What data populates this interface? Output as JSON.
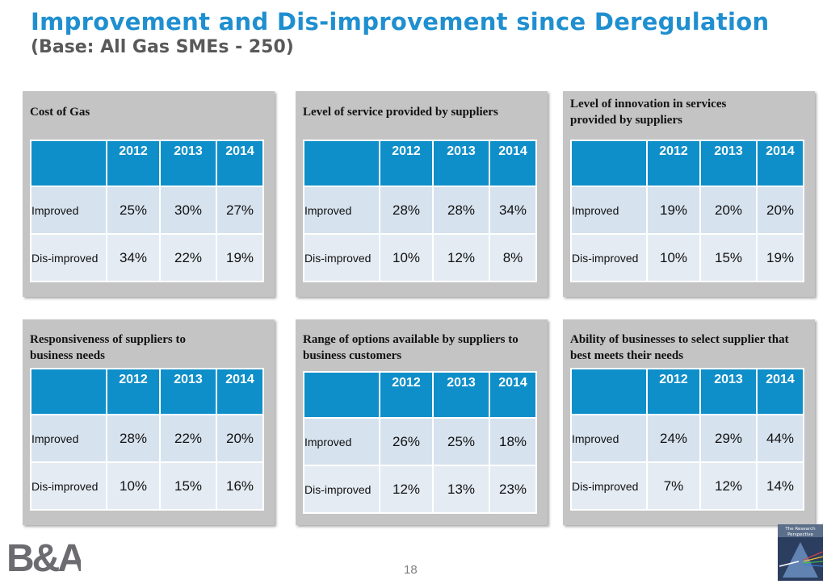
{
  "header": {
    "title": "Improvement and Dis-improvement since Deregulation",
    "subtitle": "(Base: All Gas SMEs - 250)"
  },
  "years": [
    "2012",
    "2013",
    "2014"
  ],
  "row_labels": [
    "Improved",
    "Dis-improved"
  ],
  "panels": [
    {
      "title": "Cost of Gas",
      "improved": [
        "25%",
        "30%",
        "27%"
      ],
      "disimproved": [
        "34%",
        "22%",
        "19%"
      ]
    },
    {
      "title": "Level of service provided by suppliers",
      "improved": [
        "28%",
        "28%",
        "34%"
      ],
      "disimproved": [
        "10%",
        "12%",
        "8%"
      ]
    },
    {
      "title": "Level of innovation in services provided by suppliers",
      "improved": [
        "19%",
        "20%",
        "20%"
      ],
      "disimproved": [
        "10%",
        "15%",
        "19%"
      ]
    },
    {
      "title": "Responsiveness of suppliers to business needs",
      "improved": [
        "28%",
        "22%",
        "20%"
      ],
      "disimproved": [
        "10%",
        "15%",
        "16%"
      ]
    },
    {
      "title": "Range of options available by suppliers to business customers",
      "improved": [
        "26%",
        "25%",
        "18%"
      ],
      "disimproved": [
        "12%",
        "13%",
        "23%"
      ]
    },
    {
      "title": "Ability of businesses to select supplier that best meets their needs",
      "improved": [
        "24%",
        "29%",
        "44%"
      ],
      "disimproved": [
        "7%",
        "12%",
        "14%"
      ]
    }
  ],
  "footer": {
    "page_number": "18",
    "logo_left": "B&A",
    "logo_right_line1": "The Research",
    "logo_right_line2": "Perspective"
  },
  "colors": {
    "title": "#1f8fd0",
    "header_cell": "#0f8fc9",
    "panel": "#c4c4c4"
  }
}
